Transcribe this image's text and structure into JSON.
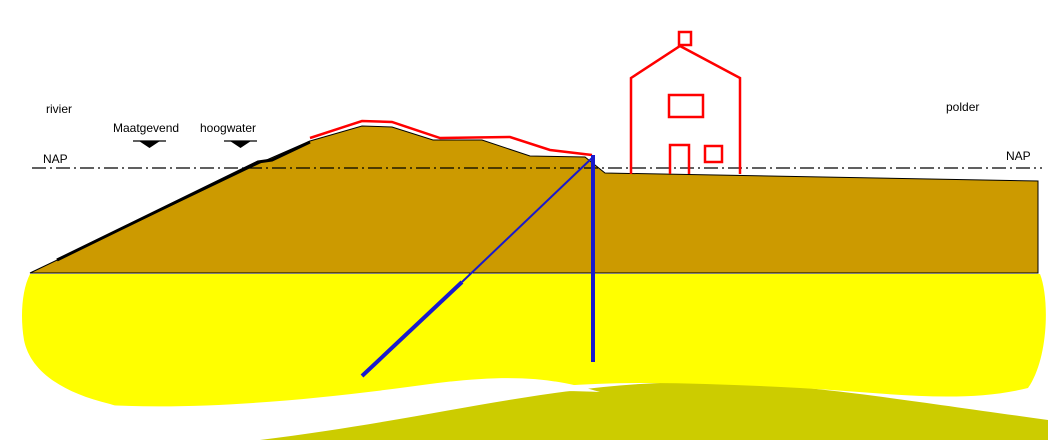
{
  "labels": {
    "river": "rivier",
    "design_high_water_part1": "Maatgevend",
    "design_high_water_part2": "hoogwater",
    "nap_left": "NAP",
    "nap_right": "NAP",
    "polder": "polder"
  },
  "colors": {
    "dike_body": "#cc9a00",
    "subsoil": "#ffff00",
    "deep_layer": "#cccc00",
    "reinforcement_profile": "#ff0000",
    "house": "#ff0000",
    "screens": "#1a1acc",
    "revetment": "#000000",
    "reference_line": "#000000"
  },
  "icons": {
    "water_level_marker": "inverted-triangle"
  }
}
